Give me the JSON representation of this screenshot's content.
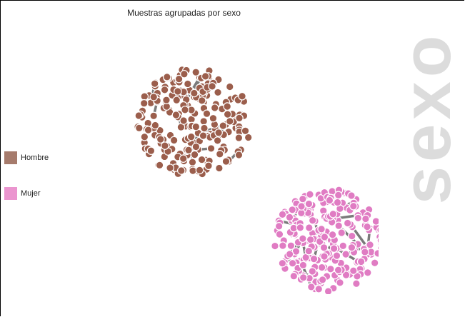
{
  "chart_data": {
    "type": "scatter",
    "title": "Muestras agrupadas por sexo",
    "big_label": "sexo",
    "legend_placement": "left",
    "series": [
      {
        "name": "Hombre",
        "color": "#9b5e4c",
        "legend_color": "#a67b6c",
        "cluster": "upper-left",
        "approx_points": 230
      },
      {
        "name": "Mujer",
        "color": "#e07cc3",
        "legend_color": "#eb95cf",
        "cluster": "lower-right",
        "approx_points": 230
      }
    ],
    "link_color": "#7a7a7a"
  }
}
